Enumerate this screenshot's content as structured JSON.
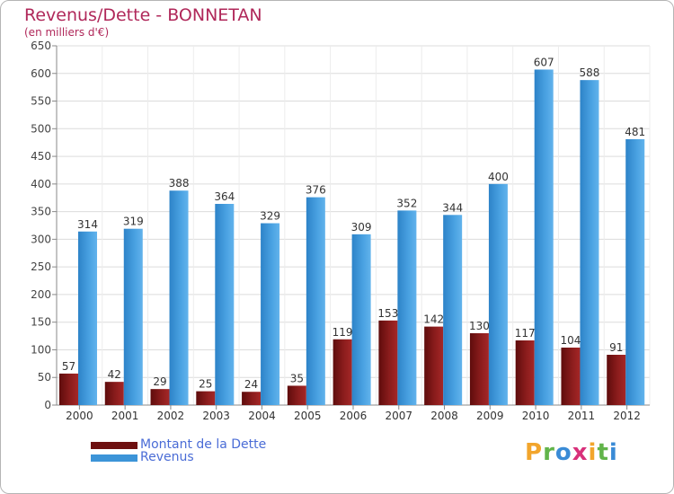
{
  "header": {
    "title": "Revenus/Dette - BONNETAN",
    "subtitle": "(en milliers d'€)"
  },
  "legend": {
    "debt_label": "Montant de la Dette",
    "revenue_label": "Revenus"
  },
  "logo": {
    "text": "Proxiti",
    "letters": [
      "P",
      "r",
      "o",
      "x",
      "i",
      "t",
      "i"
    ]
  },
  "colors": {
    "title": "#b0285a",
    "debt": "#7a1414",
    "debt_light": "#a52424",
    "revenue": "#3c94d8",
    "revenue_light": "#5eb0ea",
    "legend_text": "#4a6cd6"
  },
  "chart_data": {
    "type": "bar",
    "title": "Revenus/Dette - BONNETAN",
    "ylabel": "(en milliers d'€)",
    "xlabel": "",
    "categories": [
      "2000",
      "2001",
      "2002",
      "2003",
      "2004",
      "2005",
      "2006",
      "2007",
      "2008",
      "2009",
      "2010",
      "2011",
      "2012"
    ],
    "series": [
      {
        "name": "Montant de la Dette",
        "values": [
          57,
          42,
          29,
          25,
          24,
          35,
          119,
          153,
          142,
          130,
          117,
          104,
          91
        ]
      },
      {
        "name": "Revenus",
        "values": [
          314,
          319,
          388,
          364,
          329,
          376,
          309,
          352,
          344,
          400,
          607,
          588,
          481
        ]
      }
    ],
    "ylim": [
      0,
      650
    ],
    "yticks": [
      0,
      50,
      100,
      150,
      200,
      250,
      300,
      350,
      400,
      450,
      500,
      550,
      600,
      650
    ],
    "grid": true,
    "legend": "bottom-left"
  }
}
